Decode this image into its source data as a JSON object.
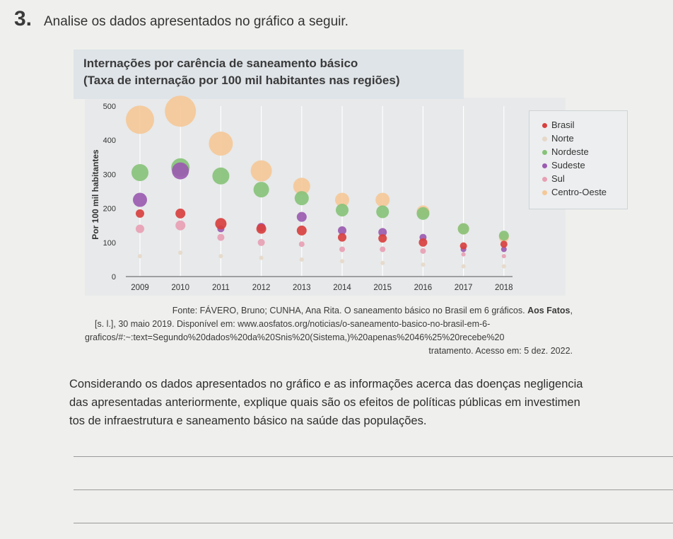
{
  "question": {
    "number": "3.",
    "prompt": "Analise os dados apresentados no gráfico a seguir."
  },
  "chart_data": {
    "type": "scatter",
    "title": "Internações por carência de saneamento básico",
    "subtitle": "(Taxa de internação por 100 mil habitantes nas regiões)",
    "ylabel": "Por 100 mil habitantes",
    "ylim": [
      0,
      500
    ],
    "yticks": [
      "0",
      "100",
      "200",
      "300",
      "400",
      "500"
    ],
    "categories": [
      "2009",
      "2010",
      "2011",
      "2012",
      "2013",
      "2014",
      "2015",
      "2016",
      "2017",
      "2018"
    ],
    "legend_position": "right",
    "grid": "vertical",
    "series": [
      {
        "name": "Brasil",
        "color": "#d8403f",
        "values": [
          185,
          185,
          155,
          140,
          135,
          115,
          112,
          100,
          90,
          95
        ]
      },
      {
        "name": "Norte",
        "color": "#e6d8c8",
        "values": [
          60,
          70,
          60,
          55,
          50,
          45,
          40,
          35,
          30,
          30
        ]
      },
      {
        "name": "Nordeste",
        "color": "#88c27a",
        "values": [
          305,
          320,
          295,
          255,
          230,
          195,
          190,
          185,
          140,
          120
        ]
      },
      {
        "name": "Sudeste",
        "color": "#9b5bb0",
        "values": [
          225,
          310,
          140,
          145,
          175,
          135,
          130,
          115,
          80,
          80
        ]
      },
      {
        "name": "Sul",
        "color": "#e8a0b4",
        "values": [
          140,
          150,
          115,
          100,
          95,
          80,
          80,
          75,
          65,
          60
        ]
      },
      {
        "name": "Centro-Oeste",
        "color": "#f5c898",
        "values": [
          460,
          485,
          390,
          310,
          265,
          225,
          225,
          190,
          140,
          115
        ]
      }
    ],
    "bubble_radius": [
      [
        6,
        7,
        8,
        7,
        7,
        6,
        6,
        6,
        5,
        5
      ],
      [
        3,
        3,
        3,
        3,
        3,
        3,
        3,
        3,
        3,
        3
      ],
      [
        12,
        13,
        12,
        11,
        10,
        9,
        9,
        9,
        8,
        7
      ],
      [
        10,
        12,
        5,
        6,
        7,
        6,
        6,
        5,
        4,
        4
      ],
      [
        6,
        7,
        5,
        5,
        4,
        4,
        4,
        4,
        3,
        3
      ],
      [
        20,
        22,
        17,
        15,
        12,
        10,
        10,
        9,
        8,
        7
      ]
    ]
  },
  "source": {
    "line1_prefix": "Fonte: FÁVERO, Bruno; CUNHA, Ana Rita. O saneamento básico no Brasil em 6 gráficos. ",
    "line1_bold": "Aos Fatos",
    "line1_suffix": ",",
    "line2": "[s. l.], 30 maio 2019. Disponível em: www.aosfatos.org/noticias/o-saneamento-basico-no-brasil-em-6-",
    "line3": "graficos/#:~:text=Segundo%20dados%20da%20Snis%20(Sistema,)%20apenas%2046%25%20recebe%20",
    "line4": "tratamento. Acesso em: 5 dez. 2022."
  },
  "body_text": {
    "line1": "Considerando os dados apresentados no gráfico e as informações acerca das doenças negligencia",
    "line2": "das apresentadas anteriormente, explique quais são os efeitos de políticas públicas em investimen",
    "line3": "tos de infraestrutura e saneamento básico na saúde das populações."
  }
}
